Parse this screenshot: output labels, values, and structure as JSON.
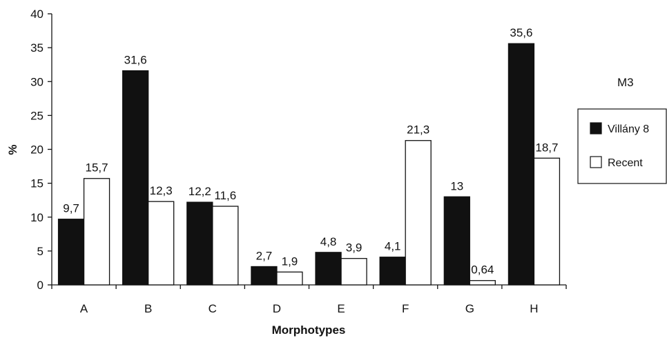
{
  "chart_data": {
    "type": "bar",
    "title": "",
    "corner_label": "M3",
    "xlabel": "Morphotypes",
    "ylabel": "%",
    "categories": [
      "A",
      "B",
      "C",
      "D",
      "E",
      "F",
      "G",
      "H"
    ],
    "ylim": [
      0,
      40
    ],
    "yticks": [
      0,
      5,
      10,
      15,
      20,
      25,
      30,
      35,
      40
    ],
    "grid": false,
    "legend_position": "right",
    "series": [
      {
        "name": "Villány 8",
        "color": "#111111",
        "values": [
          9.7,
          31.6,
          12.2,
          2.7,
          4.8,
          4.1,
          13,
          35.6
        ],
        "labels": [
          "9,7",
          "31,6",
          "12,2",
          "2,7",
          "4,8",
          "4,1",
          "13",
          "35,6"
        ]
      },
      {
        "name": "Recent",
        "color": "#ffffff",
        "values": [
          15.7,
          12.3,
          11.6,
          1.9,
          3.9,
          21.3,
          0.64,
          18.7
        ],
        "labels": [
          "15,7",
          "12,3",
          "11,6",
          "1,9",
          "3,9",
          "21,3",
          "0,64",
          "18,7"
        ]
      }
    ]
  }
}
